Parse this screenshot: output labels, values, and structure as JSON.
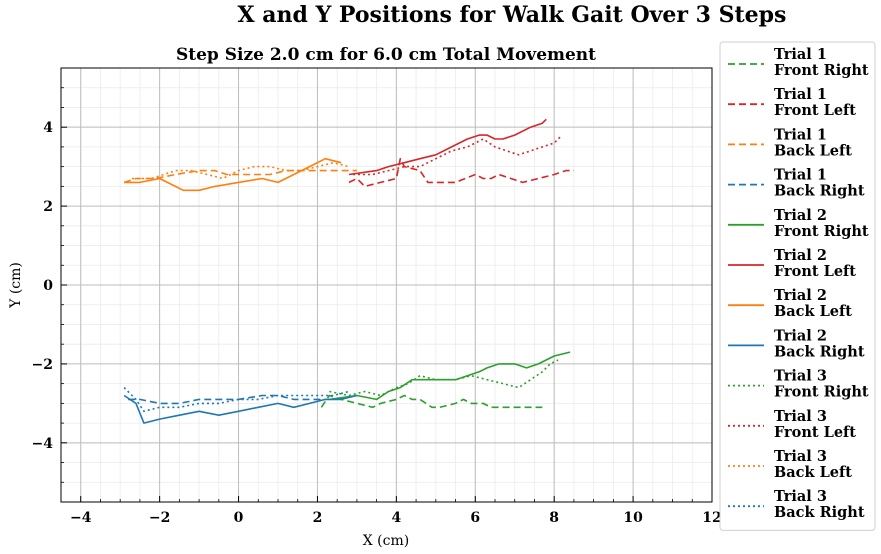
{
  "chart_data": {
    "type": "line",
    "suptitle": "X and Y Positions for Walk Gait Over 3 Steps",
    "title": "Step Size 2.0 cm for 6.0 cm Total Movement",
    "xlabel": "X (cm)",
    "ylabel": "Y (cm)",
    "xlim": [
      -4.5,
      12
    ],
    "ylim": [
      -5.5,
      5.5
    ],
    "xticks": [
      -4,
      -2,
      0,
      2,
      4,
      6,
      8,
      10,
      12
    ],
    "yticks": [
      -4,
      -2,
      0,
      2,
      4
    ],
    "xtick_labels": [
      "−4",
      "−2",
      "0",
      "2",
      "4",
      "6",
      "8",
      "10",
      "12"
    ],
    "ytick_labels": [
      "−4",
      "−2",
      "0",
      "2",
      "4"
    ],
    "grid": true,
    "legend_placement": "outside-right",
    "colors": {
      "front_right": "#2ca02c",
      "front_left": "#d62728",
      "back_left": "#ff7f0e",
      "back_right": "#1f77b4"
    },
    "series": [
      {
        "name": "Trial 1\nFront Right",
        "color": "#2ca02c",
        "style": "dashed",
        "x": [
          2.1,
          2.3,
          2.6,
          3.4,
          3.6,
          4.0,
          4.2,
          4.4,
          4.6,
          4.9,
          5.1,
          5.5,
          5.7,
          5.9,
          6.2,
          6.4,
          6.7,
          7.0,
          7.4,
          7.7
        ],
        "y": [
          -3.1,
          -2.8,
          -2.9,
          -3.1,
          -3.0,
          -2.9,
          -2.8,
          -2.9,
          -2.9,
          -3.1,
          -3.1,
          -3.0,
          -2.9,
          -3.0,
          -3.0,
          -3.1,
          -3.1,
          -3.1,
          -3.1,
          -3.1
        ]
      },
      {
        "name": "Trial 1\nFront Left",
        "color": "#d62728",
        "style": "dashed",
        "x": [
          2.8,
          3.0,
          3.2,
          3.6,
          4.0,
          4.1,
          4.2,
          4.6,
          4.8,
          5.0,
          5.5,
          6.0,
          6.2,
          6.4,
          6.6,
          7.2,
          7.6,
          8.0,
          8.3,
          8.5
        ],
        "y": [
          2.6,
          2.7,
          2.5,
          2.6,
          2.7,
          3.2,
          3.0,
          2.9,
          2.6,
          2.6,
          2.6,
          2.8,
          2.7,
          2.7,
          2.8,
          2.6,
          2.7,
          2.8,
          2.9,
          2.9
        ]
      },
      {
        "name": "Trial 1\nBack Left",
        "color": "#ff7f0e",
        "style": "dashed",
        "x": [
          -2.9,
          -2.6,
          -2.1,
          -1.6,
          -1.0,
          -0.6,
          -0.3,
          0.0,
          0.4,
          0.8,
          1.2,
          1.6,
          2.0,
          2.4,
          2.8,
          3.0
        ],
        "y": [
          2.6,
          2.7,
          2.7,
          2.8,
          2.9,
          2.9,
          2.8,
          2.8,
          2.8,
          2.8,
          2.9,
          2.9,
          2.9,
          2.9,
          2.9,
          2.9
        ]
      },
      {
        "name": "Trial 1\nBack Right",
        "color": "#1f77b4",
        "style": "dashed",
        "x": [
          -2.8,
          -2.5,
          -2.0,
          -1.5,
          -1.0,
          -0.5,
          0.0,
          0.6,
          1.0,
          1.4,
          1.8,
          2.2
        ],
        "y": [
          -2.9,
          -2.9,
          -3.0,
          -3.0,
          -2.9,
          -2.9,
          -2.9,
          -2.8,
          -2.8,
          -2.9,
          -2.9,
          -2.9
        ]
      },
      {
        "name": "Trial 2\nFront Right",
        "color": "#2ca02c",
        "style": "solid",
        "x": [
          2.3,
          3.0,
          3.5,
          3.8,
          4.1,
          4.4,
          4.6,
          5.0,
          5.5,
          5.8,
          6.1,
          6.3,
          6.6,
          7.0,
          7.3,
          7.6,
          8.0,
          8.4
        ],
        "y": [
          -2.9,
          -2.8,
          -2.9,
          -2.7,
          -2.6,
          -2.4,
          -2.4,
          -2.4,
          -2.4,
          -2.3,
          -2.2,
          -2.1,
          -2.0,
          -2.0,
          -2.1,
          -2.0,
          -1.8,
          -1.7
        ]
      },
      {
        "name": "Trial 2\nFront Left",
        "color": "#d62728",
        "style": "solid",
        "x": [
          2.8,
          3.5,
          3.8,
          4.2,
          4.6,
          5.0,
          5.4,
          5.8,
          6.1,
          6.3,
          6.5,
          6.7,
          7.0,
          7.4,
          7.7,
          7.8
        ],
        "y": [
          2.8,
          2.9,
          3.0,
          3.1,
          3.2,
          3.3,
          3.5,
          3.7,
          3.8,
          3.8,
          3.7,
          3.7,
          3.8,
          4.0,
          4.1,
          4.2
        ]
      },
      {
        "name": "Trial 2\nBack Left",
        "color": "#ff7f0e",
        "style": "solid",
        "x": [
          -2.9,
          -2.5,
          -2.0,
          -1.6,
          -1.4,
          -1.0,
          -0.6,
          0.0,
          0.6,
          1.0,
          1.4,
          1.8,
          2.2,
          2.6
        ],
        "y": [
          2.6,
          2.6,
          2.7,
          2.5,
          2.4,
          2.4,
          2.5,
          2.6,
          2.7,
          2.6,
          2.8,
          3.0,
          3.2,
          3.1
        ]
      },
      {
        "name": "Trial 2\nBack Right",
        "color": "#1f77b4",
        "style": "solid",
        "x": [
          -2.9,
          -2.6,
          -2.4,
          -2.0,
          -1.5,
          -1.0,
          -0.5,
          0.0,
          0.5,
          1.0,
          1.4,
          1.8,
          2.2,
          2.6,
          3.0
        ],
        "y": [
          -2.8,
          -3.0,
          -3.5,
          -3.4,
          -3.3,
          -3.2,
          -3.3,
          -3.2,
          -3.1,
          -3.0,
          -3.1,
          -3.0,
          -2.9,
          -2.9,
          -2.8
        ]
      },
      {
        "name": "Trial 3\nFront Right",
        "color": "#2ca02c",
        "style": "dotted",
        "x": [
          2.3,
          2.8,
          3.2,
          3.6,
          4.0,
          4.3,
          4.6,
          5.0,
          5.5,
          5.9,
          6.3,
          6.7,
          7.1,
          7.4,
          7.7,
          7.9,
          8.1
        ],
        "y": [
          -2.7,
          -2.8,
          -2.7,
          -2.8,
          -2.6,
          -2.5,
          -2.3,
          -2.4,
          -2.4,
          -2.3,
          -2.4,
          -2.5,
          -2.6,
          -2.4,
          -2.2,
          -2.0,
          -1.9
        ]
      },
      {
        "name": "Trial 3\nFront Left",
        "color": "#d62728",
        "style": "dotted",
        "x": [
          2.9,
          3.4,
          3.8,
          4.2,
          4.6,
          5.0,
          5.4,
          5.8,
          6.0,
          6.2,
          6.5,
          6.8,
          7.1,
          7.4,
          7.7,
          8.0,
          8.2
        ],
        "y": [
          2.8,
          2.8,
          2.9,
          3.0,
          3.0,
          3.2,
          3.4,
          3.5,
          3.6,
          3.7,
          3.5,
          3.4,
          3.3,
          3.4,
          3.5,
          3.6,
          3.8
        ]
      },
      {
        "name": "Trial 3\nBack Left",
        "color": "#ff7f0e",
        "style": "dotted",
        "x": [
          -2.7,
          -2.2,
          -1.6,
          -1.2,
          -0.8,
          -0.4,
          0.0,
          0.4,
          0.8,
          1.2,
          1.6,
          2.0,
          2.4,
          2.8
        ],
        "y": [
          2.7,
          2.7,
          2.9,
          2.9,
          2.8,
          2.7,
          2.9,
          3.0,
          3.0,
          2.9,
          2.9,
          3.0,
          3.1,
          3.0
        ]
      },
      {
        "name": "Trial 3\nBack Right",
        "color": "#1f77b4",
        "style": "dotted",
        "x": [
          -2.9,
          -2.6,
          -2.4,
          -2.0,
          -1.5,
          -1.0,
          -0.5,
          0.0,
          0.5,
          1.0,
          1.5,
          2.0,
          2.4,
          2.8
        ],
        "y": [
          -2.6,
          -2.9,
          -3.2,
          -3.1,
          -3.1,
          -3.0,
          -3.0,
          -2.9,
          -2.9,
          -2.8,
          -2.8,
          -2.8,
          -2.8,
          -2.7
        ]
      }
    ]
  }
}
